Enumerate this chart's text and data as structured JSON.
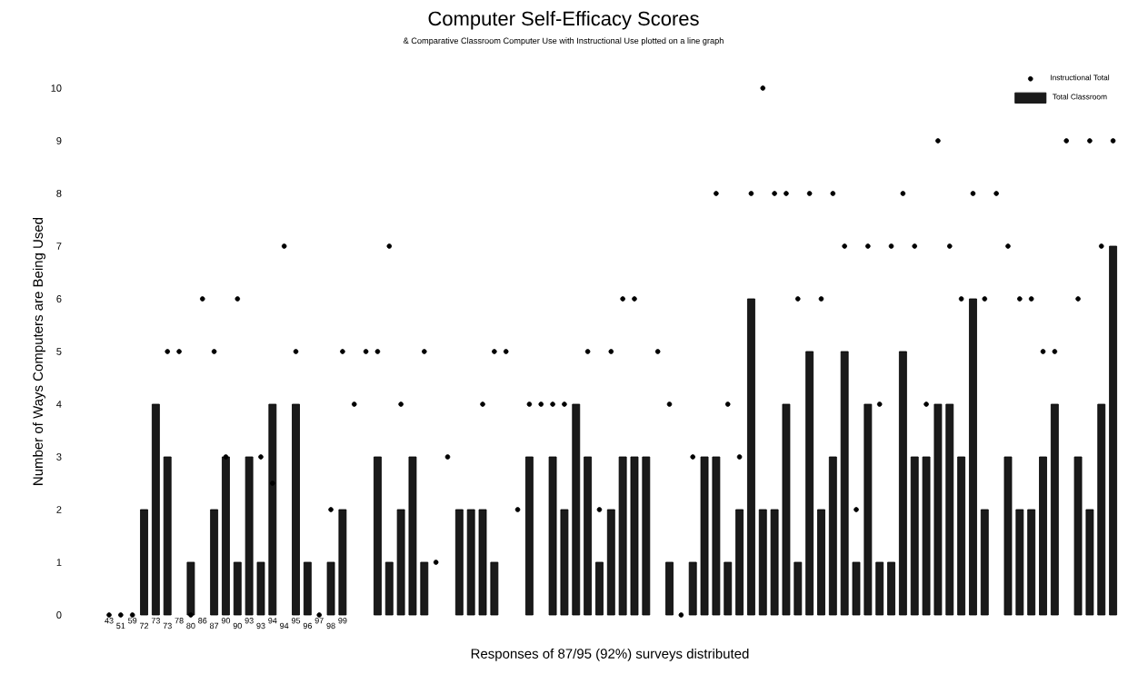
{
  "chart_data": {
    "type": "bar",
    "title": "Computer Self-Efficacy Scores",
    "subtitle": "& Comparative Classroom Computer Use with Instructional Use plotted on a line graph",
    "xlabel": "Responses of 87/95 (92%) surveys distributed",
    "ylabel": "Number of Ways Computers are Being Used",
    "categories": [
      "43",
      "51",
      "59",
      "72",
      "73",
      "73",
      "78",
      "80",
      "86",
      "87",
      "90",
      "90",
      "93",
      "93",
      "94",
      "94",
      "95",
      "96",
      "97",
      "98",
      "99",
      null,
      null,
      null,
      null,
      null,
      null,
      null,
      null,
      null,
      null,
      null,
      null,
      null,
      null,
      null,
      null,
      null,
      null,
      null,
      null,
      null,
      null,
      null,
      null,
      null,
      null,
      null,
      null,
      null,
      null,
      null,
      null,
      null,
      null,
      null,
      null,
      null,
      null,
      null,
      null,
      null,
      null,
      null,
      null,
      null,
      null,
      null,
      null,
      null,
      null,
      null,
      null,
      null,
      null,
      null,
      null,
      null,
      null,
      null,
      null,
      null,
      null,
      null,
      null,
      null,
      null
    ],
    "series": [
      {
        "name": "Total Classroom",
        "color": "#1a1a1a",
        "values": [
          null,
          null,
          null,
          2,
          4,
          3,
          null,
          1,
          null,
          2,
          3,
          1,
          3,
          1,
          4,
          null,
          4,
          1,
          null,
          1,
          2,
          null,
          null,
          3,
          1,
          2,
          3,
          1,
          null,
          null,
          2,
          2,
          2,
          1,
          null,
          null,
          3,
          null,
          3,
          2,
          4,
          3,
          1,
          2,
          3,
          3,
          3,
          null,
          1,
          null,
          1,
          3,
          3,
          1,
          2,
          6,
          2,
          2,
          4,
          1,
          5,
          2,
          3,
          5,
          1,
          4,
          1,
          1,
          5,
          3,
          3,
          4,
          4,
          3,
          6,
          2,
          null,
          3,
          2,
          2,
          3,
          4,
          null,
          3,
          2,
          4,
          7
        ]
      },
      {
        "name": "Instructional Total",
        "type": "scatter",
        "color": "#000000",
        "values": [
          0,
          0,
          0,
          null,
          null,
          5,
          5,
          0,
          6,
          5,
          3,
          6,
          null,
          3,
          2.5,
          7,
          5,
          null,
          0,
          2,
          5,
          4,
          5,
          5,
          7,
          4,
          null,
          5,
          1,
          3,
          null,
          null,
          4,
          5,
          5,
          2,
          4,
          4,
          4,
          4,
          null,
          5,
          2,
          5,
          6,
          6,
          null,
          5,
          4,
          0,
          3,
          null,
          8,
          4,
          3,
          8,
          10,
          8,
          8,
          6,
          8,
          6,
          8,
          7,
          2,
          7,
          4,
          7,
          8,
          7,
          4,
          9,
          7,
          6,
          8,
          6,
          8,
          7,
          6,
          6,
          5,
          5,
          9,
          6,
          9,
          7,
          9
        ]
      }
    ],
    "ylim": [
      0,
      10
    ],
    "yticks": [
      0,
      1,
      2,
      3,
      4,
      5,
      6,
      7,
      8,
      9,
      10
    ],
    "legend": "top right",
    "marker": "circle"
  }
}
